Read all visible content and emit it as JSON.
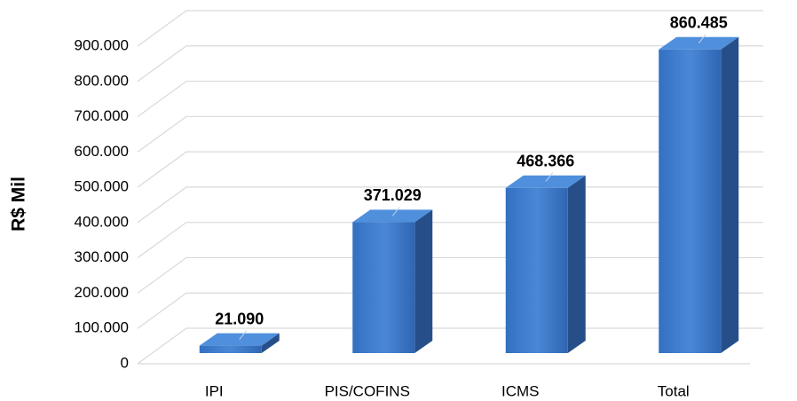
{
  "chart_data": {
    "type": "bar3d",
    "y_label": "R$ Mil",
    "categories": [
      "IPI",
      "PIS/COFINS",
      "ICMS",
      "Total"
    ],
    "values": [
      21090,
      371029,
      468366,
      860485
    ],
    "value_labels": [
      "21.090",
      "371.029",
      "468.366",
      "860.485"
    ],
    "color": "#3b78c8",
    "ylim": [
      0,
      900000
    ],
    "yticks": [
      0,
      {
        "value": 100000,
        "label": "100.000"
      },
      {
        "value": 200000,
        "label": "200.000"
      },
      {
        "value": 300000,
        "label": "300.000"
      },
      {
        "value": 400000,
        "label": "400.000"
      },
      {
        "value": 500000,
        "label": "500.000"
      },
      {
        "value": 600000,
        "label": "600.000"
      },
      {
        "value": 700000,
        "label": "700.000"
      },
      {
        "value": 800000,
        "label": "800.000"
      },
      {
        "value": 900000,
        "label": "900.000"
      }
    ],
    "grid": true
  }
}
